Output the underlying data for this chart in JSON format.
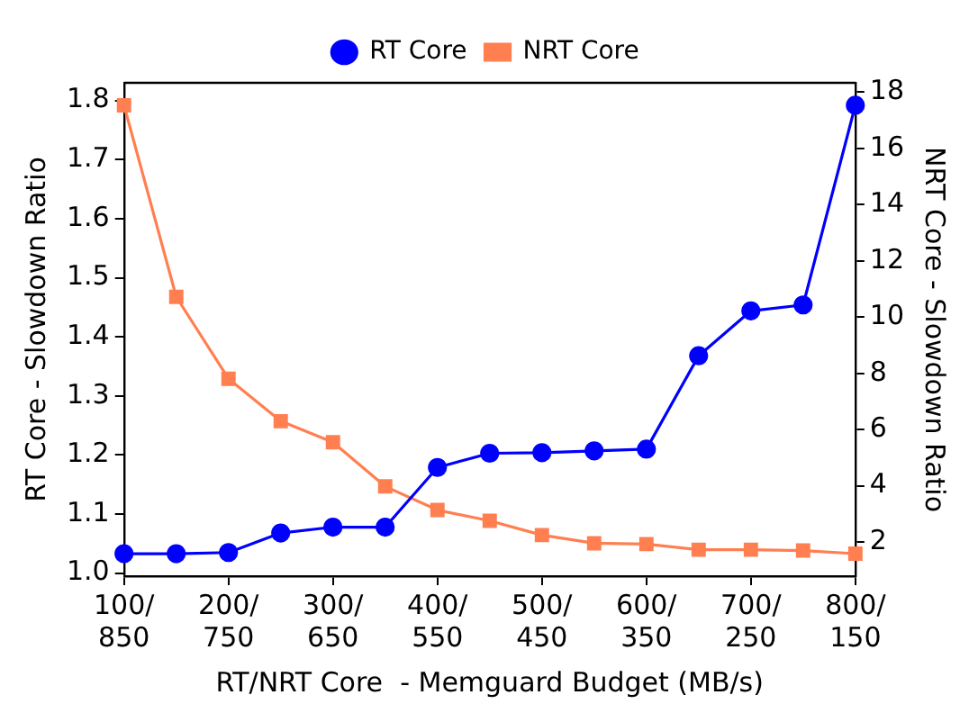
{
  "chart_data": {
    "type": "line",
    "xlabel": "RT/NRT Core  - Memguard Budget (MB/s)",
    "ylabel": "RT Core - Slowdown Ratio",
    "y2label": "NRT Core - Slowdown Ratio",
    "categories": [
      "100/850",
      null,
      "200/750",
      null,
      "300/650",
      null,
      "400/550",
      null,
      "500/450",
      null,
      "600/350",
      null,
      "700/250",
      null,
      "800/150"
    ],
    "series": [
      {
        "name": "RT Core",
        "color": "#0000ff",
        "marker": "circle",
        "values": [
          1.033,
          1.033,
          1.035,
          1.068,
          1.078,
          1.078,
          1.179,
          1.203,
          1.204,
          1.207,
          1.21,
          1.368,
          1.444,
          1.454,
          1.792
        ]
      },
      {
        "name": "NRT Core",
        "color": "#ff7f50",
        "marker": "square",
        "axis": "y2",
        "values": [
          17.53,
          10.72,
          7.81,
          6.3,
          5.55,
          3.98,
          3.14,
          2.76,
          2.25,
          1.96,
          1.93,
          1.73,
          1.73,
          1.7,
          1.59
        ]
      }
    ],
    "ylim": [
      0.995,
      1.83
    ],
    "yticks": [
      {
        "value": 1.0,
        "label": "1.0"
      },
      1.1,
      1.2,
      1.3,
      1.4,
      1.5,
      1.6,
      1.7,
      1.8
    ],
    "y2lim": [
      0.79,
      18.33
    ],
    "y2ticks": [
      2,
      4,
      6,
      8,
      10,
      12,
      14,
      16,
      18
    ],
    "grid": false,
    "legend": "top",
    "line_style": "solid"
  }
}
